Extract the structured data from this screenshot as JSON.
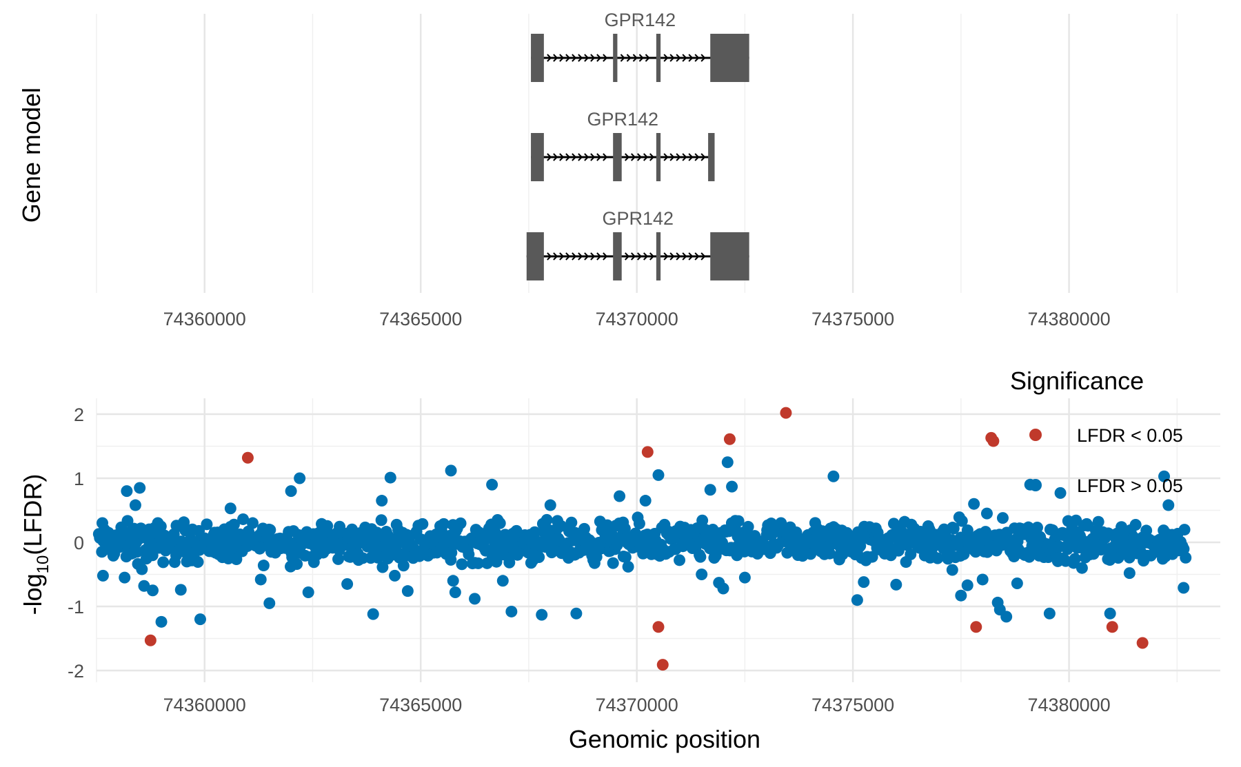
{
  "chart_data": [
    {
      "type": "gene-model",
      "ylabel": "Gene model",
      "xlim": [
        74357500,
        74383500
      ],
      "x_ticks": [
        74360000,
        74365000,
        74370000,
        74375000,
        74380000
      ],
      "x_tick_labels": [
        "74360000",
        "74365000",
        "74370000",
        "74375000",
        "74380000"
      ],
      "x_minor_ticks": [
        74357500,
        74362500,
        74367500,
        74372500,
        74377500,
        74382500
      ],
      "transcripts": [
        {
          "label": "GPR142",
          "start": 74367550,
          "end": 74372600,
          "exons": [
            [
              74367550,
              74367850
            ],
            [
              74369450,
              74369550
            ],
            [
              74370450,
              74370550
            ],
            [
              74371700,
              74372600
            ]
          ]
        },
        {
          "label": "GPR142",
          "start": 74367550,
          "end": 74371800,
          "exons": [
            [
              74367550,
              74367850
            ],
            [
              74369450,
              74369650
            ],
            [
              74370450,
              74370550
            ],
            [
              74371650,
              74371800
            ]
          ]
        },
        {
          "label": "GPR142",
          "start": 74367450,
          "end": 74372600,
          "exons": [
            [
              74367450,
              74367850
            ],
            [
              74369450,
              74369650
            ],
            [
              74370450,
              74370550
            ],
            [
              74371700,
              74372600
            ]
          ]
        }
      ]
    },
    {
      "type": "scatter",
      "xlabel": "Genomic position",
      "ylabel_main": "-log",
      "ylabel_sub": "10",
      "ylabel_rest": "(LFDR)",
      "xlim": [
        74357500,
        74383500
      ],
      "ylim": [
        -2,
        2
      ],
      "x_ticks": [
        74360000,
        74365000,
        74370000,
        74375000,
        74380000
      ],
      "x_tick_labels": [
        "74360000",
        "74365000",
        "74370000",
        "74375000",
        "74380000"
      ],
      "y_ticks": [
        -2,
        -1,
        0,
        1,
        2
      ],
      "y_tick_labels": [
        "-2",
        "-1",
        "0",
        "1",
        "2"
      ],
      "grid": true,
      "legend": {
        "title": "Significance",
        "position": "top-right",
        "entries": [
          {
            "label": "LFDR < 0.05",
            "color": "#c0392b"
          },
          {
            "label": "LFDR > 0.05",
            "color": "#0072b2"
          }
        ]
      },
      "significant_points": [
        {
          "x": 74358750,
          "y": -1.53
        },
        {
          "x": 74361000,
          "y": 1.32
        },
        {
          "x": 74370250,
          "y": 1.41
        },
        {
          "x": 74370500,
          "y": -1.32
        },
        {
          "x": 74370600,
          "y": -1.91
        },
        {
          "x": 74372150,
          "y": 1.61
        },
        {
          "x": 74373450,
          "y": 2.02
        },
        {
          "x": 74377850,
          "y": -1.32
        },
        {
          "x": 74378200,
          "y": 1.63
        },
        {
          "x": 74378250,
          "y": 1.58
        },
        {
          "x": 74381000,
          "y": -1.32
        },
        {
          "x": 74381700,
          "y": -1.57
        }
      ],
      "outlier_points": [
        {
          "x": 74357650,
          "y": -0.52
        },
        {
          "x": 74358150,
          "y": -0.55
        },
        {
          "x": 74358200,
          "y": 0.8
        },
        {
          "x": 74358400,
          "y": 0.58
        },
        {
          "x": 74358500,
          "y": 0.85
        },
        {
          "x": 74358550,
          "y": -0.42
        },
        {
          "x": 74358600,
          "y": -0.68
        },
        {
          "x": 74358800,
          "y": -0.75
        },
        {
          "x": 74359000,
          "y": -1.24
        },
        {
          "x": 74359450,
          "y": -0.74
        },
        {
          "x": 74359900,
          "y": -1.2
        },
        {
          "x": 74360600,
          "y": 0.53
        },
        {
          "x": 74361300,
          "y": -0.58
        },
        {
          "x": 74361500,
          "y": -0.95
        },
        {
          "x": 74362000,
          "y": 0.8
        },
        {
          "x": 74362200,
          "y": 1.0
        },
        {
          "x": 74362400,
          "y": -0.78
        },
        {
          "x": 74363300,
          "y": -0.65
        },
        {
          "x": 74363900,
          "y": -1.12
        },
        {
          "x": 74364100,
          "y": 0.65
        },
        {
          "x": 74364300,
          "y": 1.01
        },
        {
          "x": 74364400,
          "y": -0.52
        },
        {
          "x": 74364700,
          "y": -0.76
        },
        {
          "x": 74365700,
          "y": 1.12
        },
        {
          "x": 74365750,
          "y": -0.6
        },
        {
          "x": 74365800,
          "y": -0.78
        },
        {
          "x": 74366250,
          "y": -0.88
        },
        {
          "x": 74366650,
          "y": 0.9
        },
        {
          "x": 74366900,
          "y": -0.6
        },
        {
          "x": 74367100,
          "y": -1.08
        },
        {
          "x": 74367800,
          "y": -1.13
        },
        {
          "x": 74368000,
          "y": 0.58
        },
        {
          "x": 74368600,
          "y": -1.11
        },
        {
          "x": 74369600,
          "y": 0.72
        },
        {
          "x": 74369800,
          "y": -0.38
        },
        {
          "x": 74370200,
          "y": 0.65
        },
        {
          "x": 74370500,
          "y": 1.05
        },
        {
          "x": 74371500,
          "y": -0.5
        },
        {
          "x": 74371700,
          "y": 0.82
        },
        {
          "x": 74371900,
          "y": -0.63
        },
        {
          "x": 74372000,
          "y": -0.72
        },
        {
          "x": 74372100,
          "y": 1.25
        },
        {
          "x": 74372200,
          "y": 0.87
        },
        {
          "x": 74372500,
          "y": -0.55
        },
        {
          "x": 74374550,
          "y": 1.03
        },
        {
          "x": 74375100,
          "y": -0.9
        },
        {
          "x": 74375250,
          "y": -0.62
        },
        {
          "x": 74376000,
          "y": -0.66
        },
        {
          "x": 74377300,
          "y": -0.43
        },
        {
          "x": 74377500,
          "y": -0.83
        },
        {
          "x": 74377650,
          "y": -0.67
        },
        {
          "x": 74377800,
          "y": 0.6
        },
        {
          "x": 74378000,
          "y": -0.58
        },
        {
          "x": 74378100,
          "y": 0.45
        },
        {
          "x": 74378350,
          "y": -0.94
        },
        {
          "x": 74378400,
          "y": -1.05
        },
        {
          "x": 74378550,
          "y": -1.16
        },
        {
          "x": 74378800,
          "y": -0.64
        },
        {
          "x": 74379100,
          "y": 0.9
        },
        {
          "x": 74379550,
          "y": -1.11
        },
        {
          "x": 74379800,
          "y": 0.77
        },
        {
          "x": 74380300,
          "y": -0.4
        },
        {
          "x": 74380950,
          "y": -1.11
        },
        {
          "x": 74381400,
          "y": -0.48
        },
        {
          "x": 74382200,
          "y": 1.03
        },
        {
          "x": 74382300,
          "y": 0.58
        },
        {
          "x": 74382650,
          "y": -0.71
        }
      ]
    }
  ]
}
